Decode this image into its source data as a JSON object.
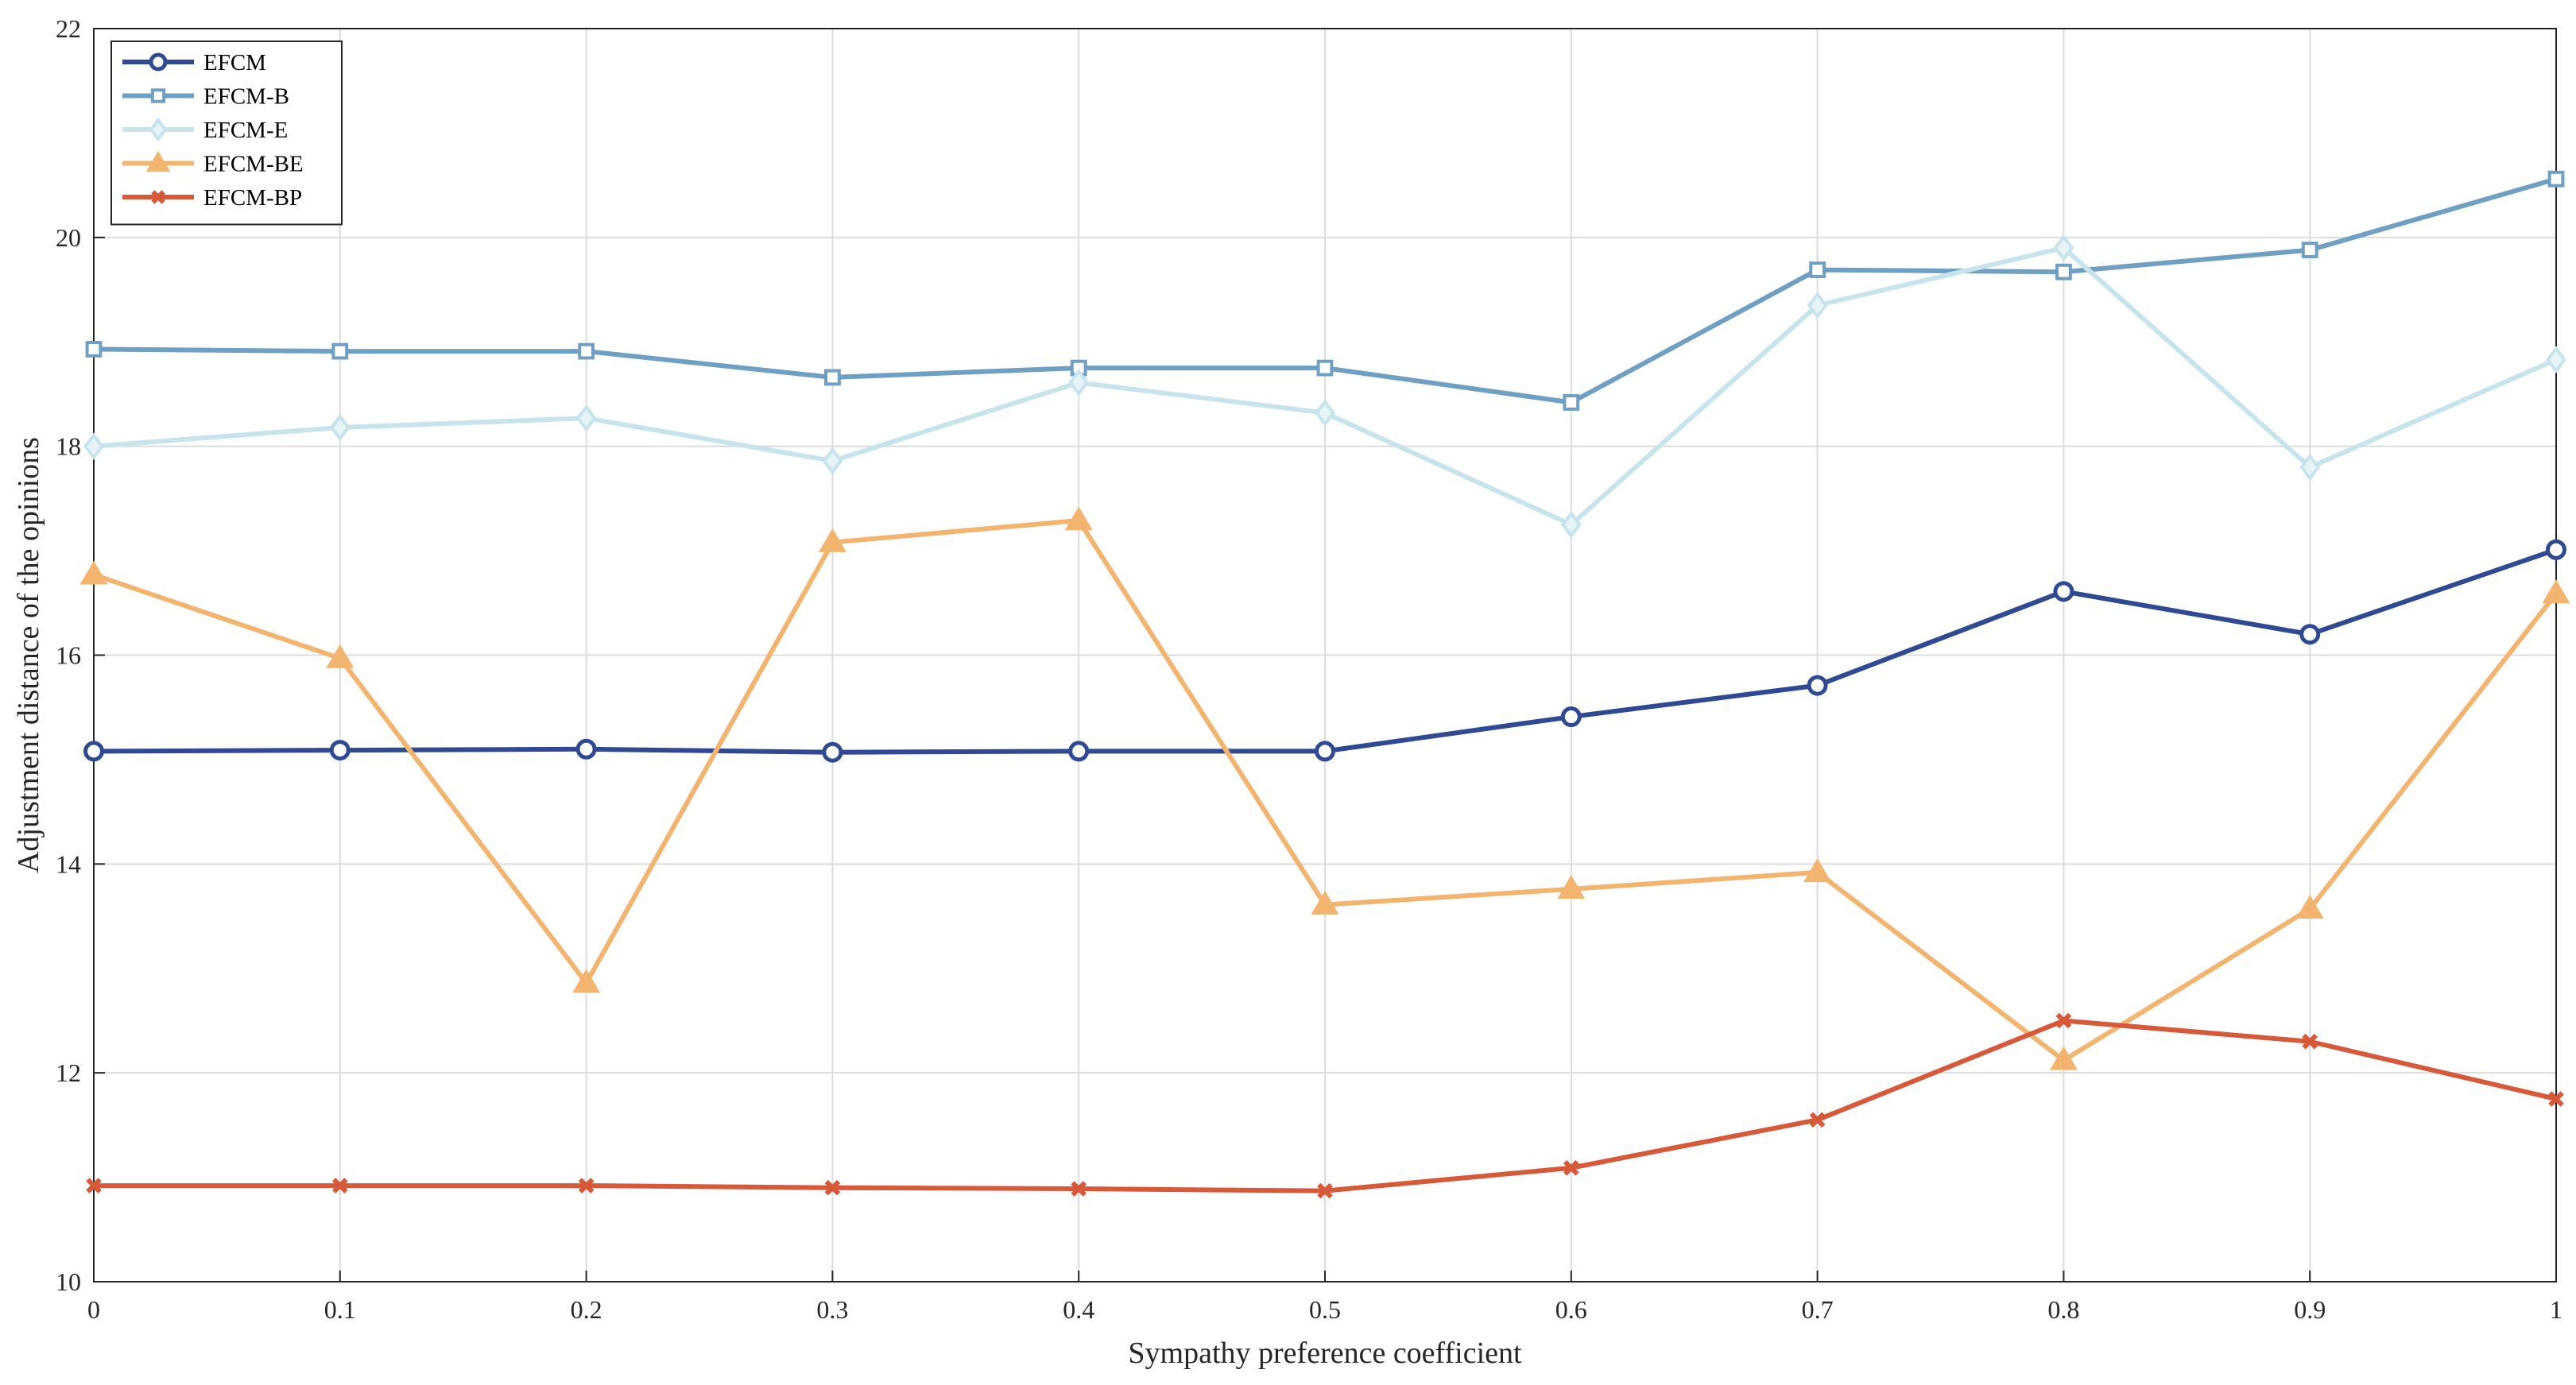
{
  "chart_data": {
    "type": "line",
    "xlabel": "Sympathy preference coefficient",
    "ylabel": "Adjustment distance of the opinions",
    "xlim": [
      0,
      1
    ],
    "ylim": [
      10,
      22
    ],
    "x": [
      0,
      0.1,
      0.2,
      0.3,
      0.4,
      0.5,
      0.6,
      0.7,
      0.8,
      0.9,
      1
    ],
    "x_ticks": [
      "0",
      "0.1",
      "0.2",
      "0.3",
      "0.4",
      "0.5",
      "0.6",
      "0.7",
      "0.8",
      "0.9",
      "1"
    ],
    "y_ticks": [
      10,
      12,
      14,
      16,
      18,
      20,
      22
    ],
    "grid": true,
    "legend_position": "top-left",
    "series": [
      {
        "name": "EFCM",
        "color": "#2f4a93",
        "marker": "circle",
        "values": [
          15.08,
          15.09,
          15.1,
          15.07,
          15.08,
          15.08,
          15.41,
          15.71,
          16.61,
          16.2,
          17.01
        ]
      },
      {
        "name": "EFCM-B",
        "color": "#6f9fc2",
        "marker": "square",
        "values": [
          18.93,
          18.91,
          18.91,
          18.66,
          18.75,
          18.75,
          18.42,
          19.69,
          19.67,
          19.88,
          20.56
        ]
      },
      {
        "name": "EFCM-E",
        "color": "#c7e4ed",
        "marker": "diamond",
        "values": [
          18.0,
          18.18,
          18.27,
          17.86,
          18.61,
          18.32,
          17.25,
          19.35,
          19.9,
          17.8,
          18.83
        ]
      },
      {
        "name": "EFCM-BE",
        "color": "#f2b46e",
        "marker": "triangle",
        "values": [
          16.77,
          15.97,
          12.86,
          17.08,
          17.29,
          13.61,
          13.76,
          13.92,
          12.12,
          13.57,
          16.59
        ]
      },
      {
        "name": "EFCM-BP",
        "color": "#d6593a",
        "marker": "x",
        "values": [
          10.92,
          10.92,
          10.92,
          10.9,
          10.89,
          10.87,
          11.09,
          11.55,
          12.5,
          12.3,
          11.75
        ]
      }
    ]
  }
}
